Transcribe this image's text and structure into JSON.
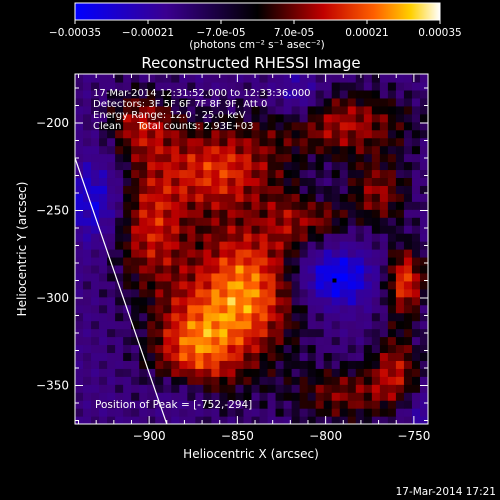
{
  "chart_data": {
    "type": "heatmap",
    "title": "Reconstructed RHESSI Image",
    "xlabel": "Heliocentric X (arcsec)",
    "ylabel": "Heliocentric Y (arcsec)",
    "xlim": [
      -942,
      -742
    ],
    "ylim": [
      -372,
      -172
    ],
    "xticks": [
      -900,
      -850,
      -800,
      -750
    ],
    "yticks": [
      -200,
      -250,
      -300,
      -350
    ],
    "colorbar": {
      "min": -0.00035,
      "max": 0.00035,
      "ticks": [
        "-0.00035",
        "-0.00021",
        "-7.0e-05",
        "7.0e-05",
        "0.00021",
        "0.00035"
      ],
      "unit_label": "(photons cm⁻² s⁻¹ asec⁻²)"
    },
    "annotations": [
      "17-Mar-2014 12:31:52.000 to 12:33:36.000",
      "Detectors: 3F 5F 6F 7F 8F 9F, Att 0",
      "Energy Range: 12.0 - 25.0 keV",
      "Clean     Total counts: 2.93E+03"
    ],
    "peak_label": "Position of Peak = [-752,-294]",
    "peak_position": [
      -752,
      -294
    ],
    "peak_marker": [
      -795,
      -290
    ],
    "limb_line": [
      [
        -942,
        -220
      ],
      [
        -890,
        -372
      ]
    ],
    "hotspots": [
      {
        "x": -845,
        "y": -295,
        "sx": 22,
        "sy": 28,
        "a": 0.00034
      },
      {
        "x": -875,
        "y": -330,
        "sx": 18,
        "sy": 22,
        "a": 0.00028
      },
      {
        "x": -900,
        "y": -260,
        "sx": 16,
        "sy": 26,
        "a": 0.00024
      },
      {
        "x": -860,
        "y": -225,
        "sx": 25,
        "sy": 18,
        "a": 0.00026
      },
      {
        "x": -905,
        "y": -200,
        "sx": 14,
        "sy": 14,
        "a": 0.0002
      },
      {
        "x": -790,
        "y": -200,
        "sx": 28,
        "sy": 14,
        "a": 0.00022
      },
      {
        "x": -770,
        "y": -240,
        "sx": 12,
        "sy": 14,
        "a": 0.0002
      },
      {
        "x": -755,
        "y": -290,
        "sx": 8,
        "sy": 14,
        "a": 0.0003
      },
      {
        "x": -760,
        "y": -340,
        "sx": 10,
        "sy": 16,
        "a": 0.0002
      },
      {
        "x": -790,
        "y": -355,
        "sx": 22,
        "sy": 12,
        "a": 0.00018
      },
      {
        "x": -820,
        "y": -255,
        "sx": 10,
        "sy": 12,
        "a": 0.00012
      },
      {
        "x": -800,
        "y": -255,
        "sx": 9,
        "sy": 9,
        "a": 0.00014
      }
    ],
    "coldspots": [
      {
        "x": -795,
        "y": -288,
        "sx": 16,
        "sy": 12,
        "a": -0.00026
      },
      {
        "x": -930,
        "y": -245,
        "sx": 12,
        "sy": 18,
        "a": -0.0002
      },
      {
        "x": -815,
        "y": -185,
        "sx": 10,
        "sy": 10,
        "a": -0.00016
      },
      {
        "x": -880,
        "y": -355,
        "sx": 12,
        "sy": 10,
        "a": -0.00014
      },
      {
        "x": -745,
        "y": -365,
        "sx": 10,
        "sy": 10,
        "a": -0.00012
      }
    ]
  },
  "footer": {
    "timestamp": "17-Mar-2014 17:21"
  }
}
